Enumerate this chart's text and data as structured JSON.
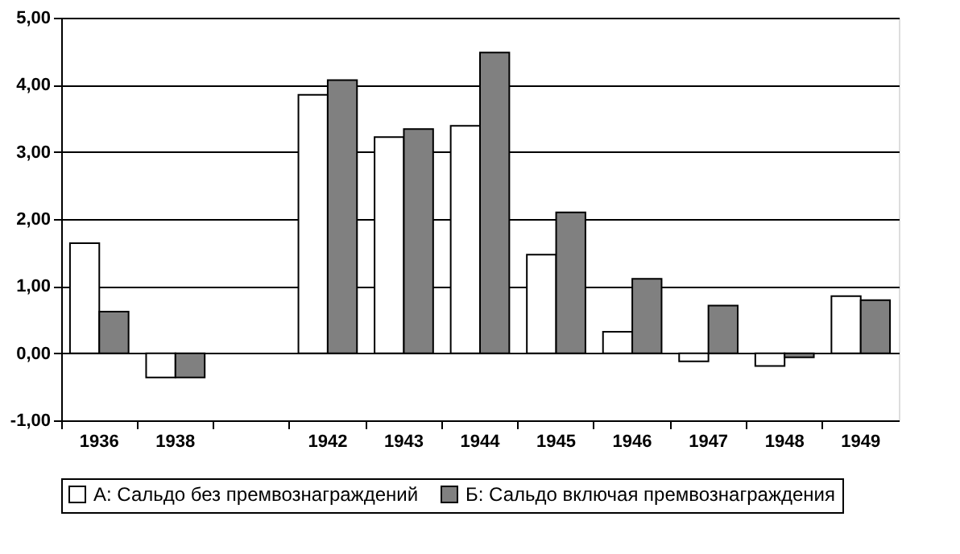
{
  "chart_data": {
    "type": "bar",
    "categories": [
      "1936",
      "1938",
      null,
      "1942",
      "1943",
      "1944",
      "1945",
      "1946",
      "1947",
      "1948",
      "1949"
    ],
    "series": [
      {
        "name": "А: Сальдо без премвознаграждений",
        "color": "#ffffff",
        "values": [
          1.64,
          -0.36,
          null,
          3.85,
          3.22,
          3.39,
          1.47,
          0.32,
          -0.12,
          -0.19,
          0.85
        ]
      },
      {
        "name": "Б: Сальдо включая премвознаграждения",
        "color": "#808080",
        "values": [
          0.62,
          -0.36,
          null,
          4.07,
          3.34,
          4.48,
          2.1,
          1.11,
          0.71,
          -0.06,
          0.79
        ]
      }
    ],
    "ylim": [
      -1,
      5
    ],
    "yticks": [
      {
        "value": -1,
        "label": "-1,00"
      },
      {
        "value": 0,
        "label": "0,00"
      },
      {
        "value": 1,
        "label": "1,00"
      },
      {
        "value": 2,
        "label": "2,00"
      },
      {
        "value": 3,
        "label": "3,00"
      },
      {
        "value": 4,
        "label": "4,00"
      },
      {
        "value": 5,
        "label": "5,00"
      }
    ],
    "grid": "y",
    "legend": "bottom"
  }
}
